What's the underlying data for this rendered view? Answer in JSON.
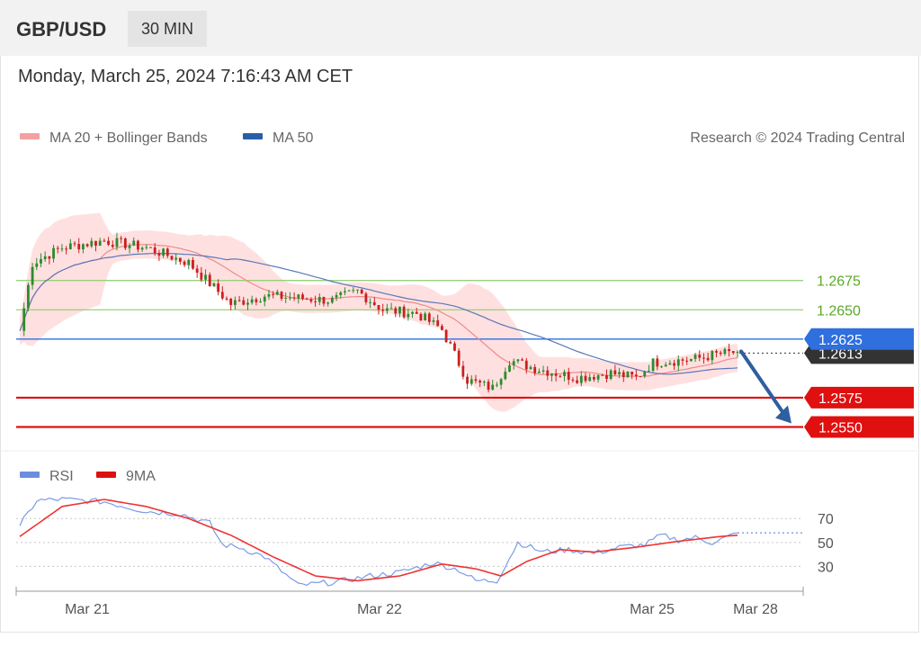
{
  "header": {
    "pair": "GBP/USD",
    "timeframe": "30 MIN"
  },
  "timestamp": "Monday, March 25, 2024 7:16:43 AM CET",
  "legend": {
    "ma20": "MA 20 + Bollinger Bands",
    "ma50": "MA 50",
    "credit": "Research © 2024 Trading Central"
  },
  "rsi_legend": {
    "rsi": "RSI",
    "ma9": "9MA"
  },
  "colors": {
    "candle_up": "#2e8b2e",
    "candle_down": "#cc1f1f",
    "bollinger": "#ffd6d6",
    "ma20": "#f08a8a",
    "ma50": "#5a78b8",
    "resistance": "#9ad07a",
    "pivot": "#2f6fde",
    "support": "#e01010",
    "arrow": "#2f5fa0",
    "rsi": "#7b9be6",
    "rsi_ma": "#e33"
  },
  "chart_data": [
    {
      "type": "candlestick",
      "ylim": [
        1.2535,
        1.277
      ],
      "x_ticks": [
        "Mar 21",
        "Mar 22",
        "Mar 25",
        "Mar 28"
      ],
      "levels": [
        {
          "value": 1.2675,
          "label": "1.2675",
          "role": "resistance"
        },
        {
          "value": 1.265,
          "label": "1.2650",
          "role": "resistance"
        },
        {
          "value": 1.2625,
          "label": "1.2625",
          "role": "pivot"
        },
        {
          "value": 1.2575,
          "label": "1.2575",
          "role": "support"
        },
        {
          "value": 1.255,
          "label": "1.2550",
          "role": "support"
        }
      ],
      "current_price": {
        "value": 1.2613,
        "label": "1.2613"
      },
      "close_anchors": [
        [
          0,
          1.2632
        ],
        [
          3,
          1.269
        ],
        [
          10,
          1.2703
        ],
        [
          20,
          1.2709
        ],
        [
          30,
          1.2703
        ],
        [
          40,
          1.269
        ],
        [
          50,
          1.2655
        ],
        [
          58,
          1.2662
        ],
        [
          66,
          1.266
        ],
        [
          74,
          1.2658
        ],
        [
          80,
          1.2666
        ],
        [
          86,
          1.265
        ],
        [
          94,
          1.2647
        ],
        [
          100,
          1.2633
        ],
        [
          106,
          1.259
        ],
        [
          112,
          1.2583
        ],
        [
          116,
          1.2607
        ],
        [
          122,
          1.26
        ],
        [
          132,
          1.2592
        ],
        [
          140,
          1.2596
        ],
        [
          146,
          1.2592
        ],
        [
          150,
          1.2605
        ],
        [
          160,
          1.2608
        ],
        [
          165,
          1.2612
        ],
        [
          170,
          1.2614
        ]
      ]
    },
    {
      "type": "line",
      "title": "RSI",
      "ylim": [
        10,
        95
      ],
      "y_ticks": [
        70,
        50,
        30
      ],
      "series": [
        {
          "name": "RSI",
          "points": [
            [
              0,
              64
            ],
            [
              4,
              85
            ],
            [
              10,
              86
            ],
            [
              20,
              84
            ],
            [
              30,
              76
            ],
            [
              38,
              74
            ],
            [
              45,
              66
            ],
            [
              48,
              48
            ],
            [
              52,
              46
            ],
            [
              58,
              38
            ],
            [
              66,
              14
            ],
            [
              75,
              17
            ],
            [
              83,
              22
            ],
            [
              90,
              25
            ],
            [
              98,
              33
            ],
            [
              104,
              27
            ],
            [
              108,
              18
            ],
            [
              113,
              18
            ],
            [
              118,
              50
            ],
            [
              124,
              42
            ],
            [
              130,
              44
            ],
            [
              136,
              41
            ],
            [
              142,
              46
            ],
            [
              148,
              48
            ],
            [
              152,
              56
            ],
            [
              156,
              52
            ],
            [
              160,
              54
            ],
            [
              164,
              50
            ],
            [
              168,
              55
            ],
            [
              170,
              58
            ]
          ]
        },
        {
          "name": "9MA",
          "points": [
            [
              0,
              55
            ],
            [
              10,
              80
            ],
            [
              20,
              86
            ],
            [
              30,
              80
            ],
            [
              40,
              70
            ],
            [
              50,
              56
            ],
            [
              60,
              38
            ],
            [
              70,
              22
            ],
            [
              80,
              18
            ],
            [
              90,
              22
            ],
            [
              100,
              32
            ],
            [
              108,
              28
            ],
            [
              114,
              22
            ],
            [
              120,
              34
            ],
            [
              128,
              44
            ],
            [
              136,
              42
            ],
            [
              146,
              46
            ],
            [
              156,
              51
            ],
            [
              166,
              55
            ],
            [
              170,
              56
            ]
          ]
        }
      ]
    }
  ]
}
